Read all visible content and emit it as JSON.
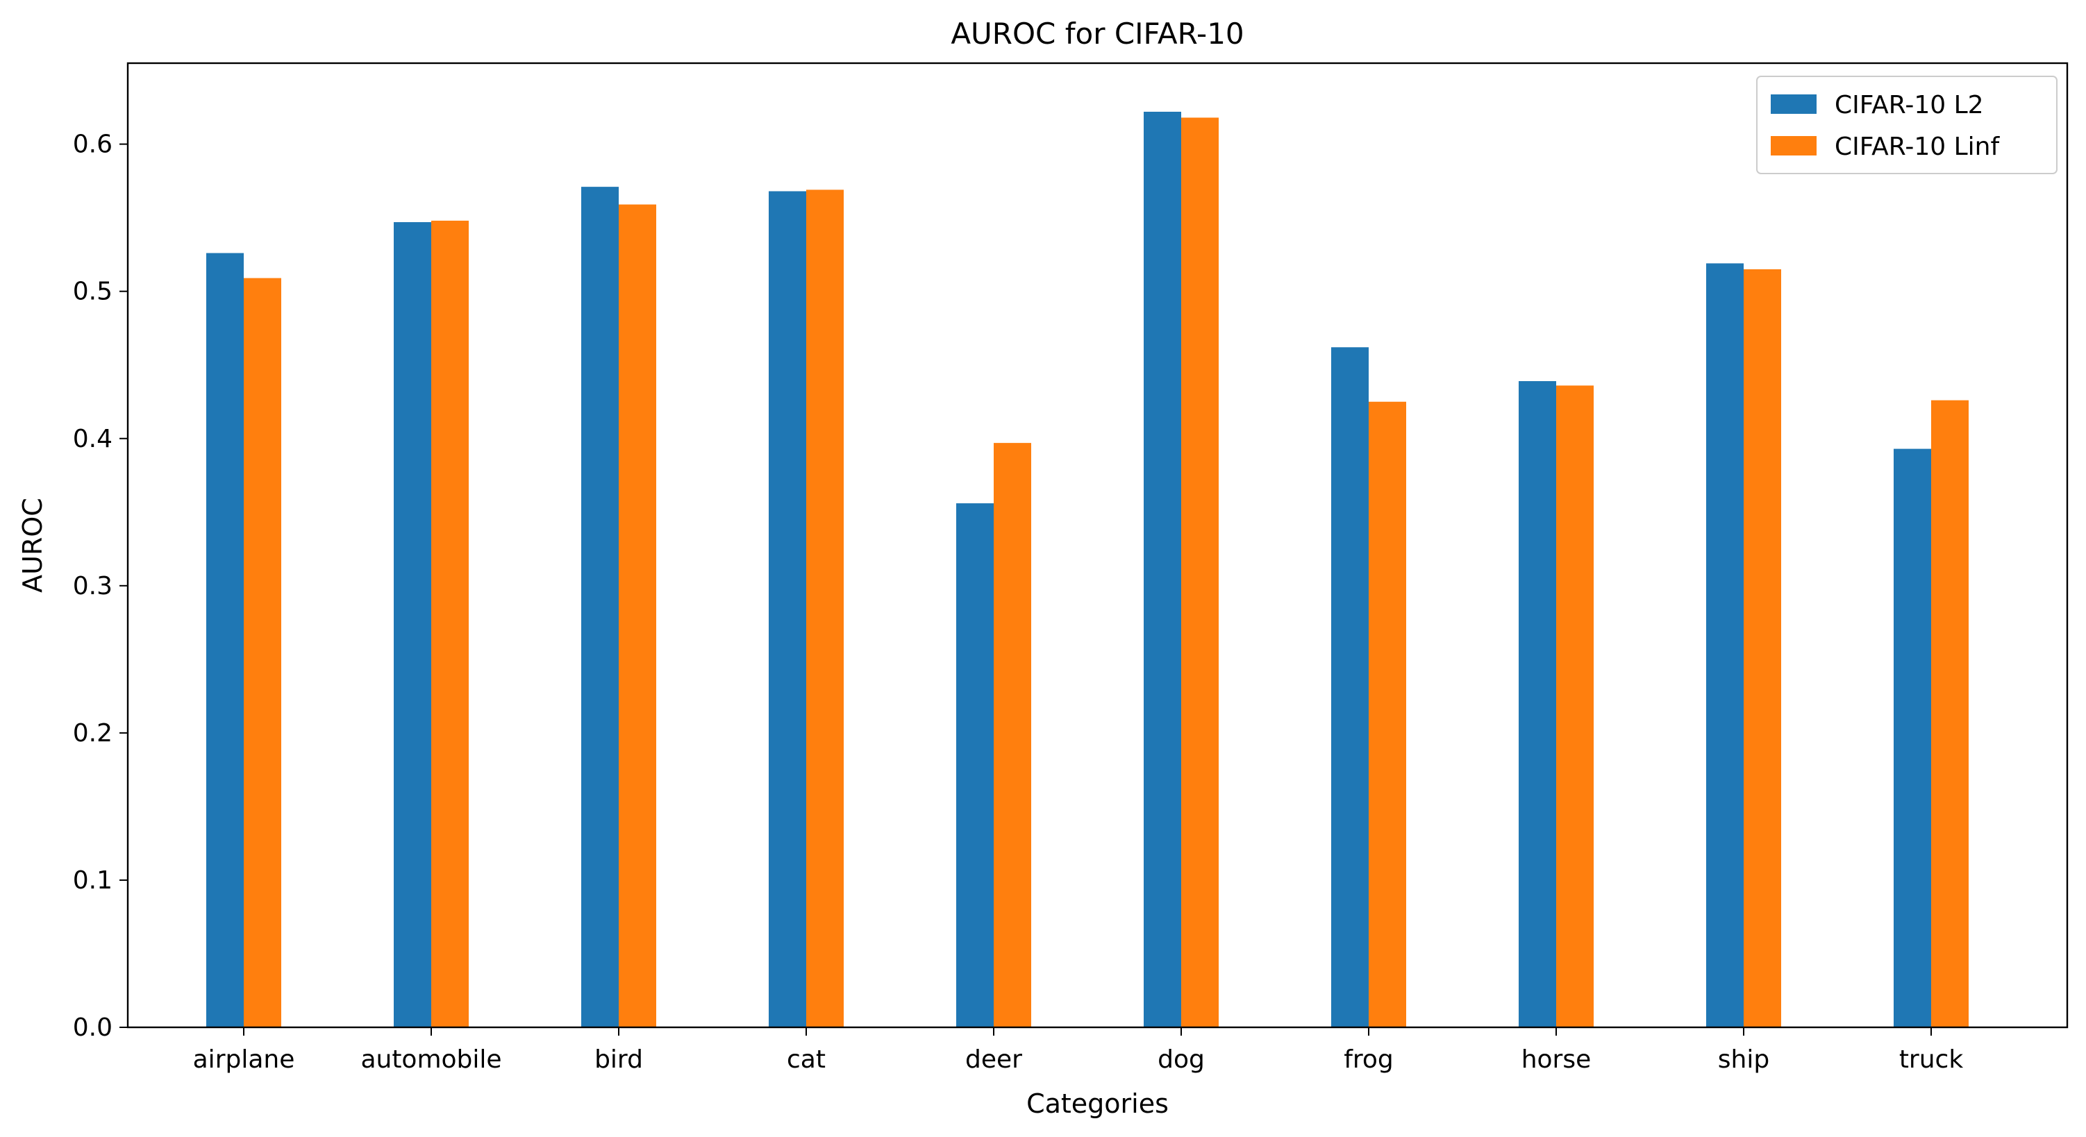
{
  "chart_data": {
    "type": "bar",
    "title": "AUROC for CIFAR-10",
    "xlabel": "Categories",
    "ylabel": "AUROC",
    "categories": [
      "airplane",
      "automobile",
      "bird",
      "cat",
      "deer",
      "dog",
      "frog",
      "horse",
      "ship",
      "truck"
    ],
    "series": [
      {
        "name": "CIFAR-10 L2",
        "color": "#1f77b4",
        "values": [
          0.526,
          0.547,
          0.571,
          0.568,
          0.356,
          0.622,
          0.462,
          0.439,
          0.519,
          0.393
        ]
      },
      {
        "name": "CIFAR-10 Linf",
        "color": "#ff7f0e",
        "values": [
          0.509,
          0.548,
          0.559,
          0.569,
          0.397,
          0.618,
          0.425,
          0.436,
          0.515,
          0.426
        ]
      }
    ],
    "ylim": [
      0,
      0.655
    ],
    "yticks": [
      0.0,
      0.1,
      0.2,
      0.3,
      0.4,
      0.5,
      0.6
    ],
    "ytick_labels": [
      "0.0",
      "0.1",
      "0.2",
      "0.3",
      "0.4",
      "0.5",
      "0.6"
    ],
    "grid": false,
    "legend_position": "top-right"
  }
}
